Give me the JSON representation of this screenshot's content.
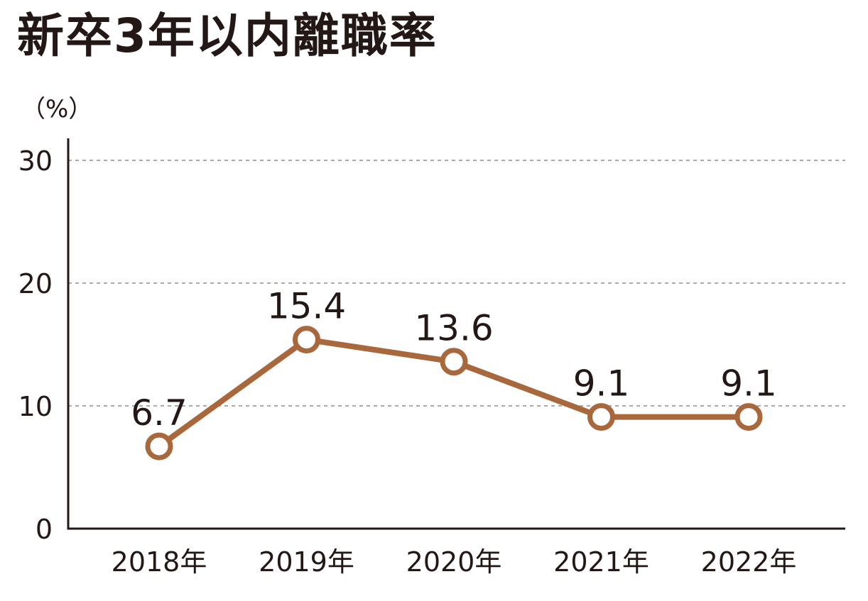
{
  "chart_data": {
    "type": "line",
    "title": "新卒3年以内離職率",
    "unit_label": "（%）",
    "categories": [
      "2018年",
      "2019年",
      "2020年",
      "2021年",
      "2022年"
    ],
    "series": [
      {
        "values": [
          6.7,
          15.4,
          13.6,
          9.1,
          9.1
        ]
      }
    ],
    "data_labels": [
      "6.7",
      "15.4",
      "13.6",
      "9.1",
      "9.1"
    ],
    "yticks": [
      0,
      10,
      20,
      30
    ],
    "ylim": [
      0,
      32
    ],
    "grid": "dashed horizontal",
    "colors": {
      "line": "#a8683c",
      "marker_fill": "#ffffff",
      "grid": "#aaaaaa",
      "axis": "#231815",
      "text": "#231815"
    }
  }
}
